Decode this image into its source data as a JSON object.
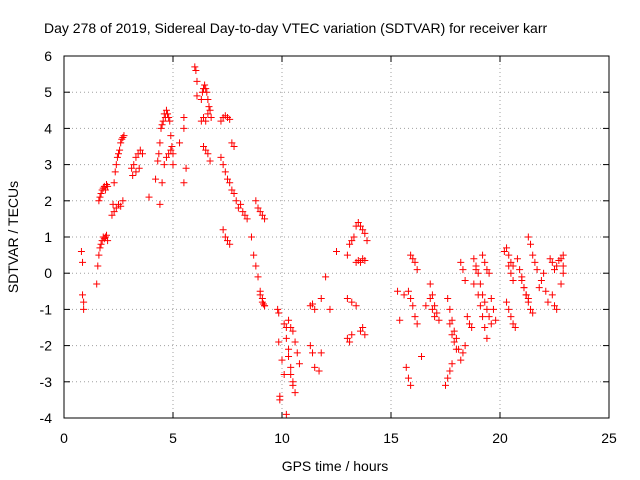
{
  "chart_data": {
    "type": "scatter",
    "title": "Day 278 of 2019, Sidereal Day-to-day VTEC variation (SDTVAR) for receiver karr",
    "xlabel": "GPS time / hours",
    "ylabel": "SDTVAR / TECUs",
    "xlim": [
      0,
      25
    ],
    "ylim": [
      -4,
      6
    ],
    "xticks": [
      0,
      5,
      10,
      15,
      20,
      25
    ],
    "yticks": [
      -4,
      -3,
      -2,
      -1,
      0,
      1,
      2,
      3,
      4,
      5,
      6
    ],
    "grid": true,
    "marker": "+",
    "color": "#ff0000",
    "series": [
      {
        "name": "SDTVAR",
        "x": [
          0.8,
          0.85,
          0.85,
          0.9,
          0.9,
          1.5,
          1.55,
          1.6,
          1.65,
          1.7,
          1.75,
          1.8,
          1.85,
          1.9,
          1.95,
          2.0,
          1.6,
          1.65,
          1.7,
          1.75,
          1.8,
          1.85,
          1.9,
          1.95,
          2.0,
          2.2,
          2.25,
          2.3,
          2.35,
          2.4,
          2.45,
          2.5,
          2.55,
          2.6,
          2.65,
          2.7,
          2.75,
          2.3,
          2.4,
          2.5,
          2.6,
          2.7,
          3.1,
          3.2,
          3.3,
          3.4,
          3.5,
          3.6,
          3.15,
          3.3,
          3.45,
          3.9,
          4.2,
          4.3,
          4.35,
          4.4,
          4.45,
          4.5,
          4.55,
          4.6,
          4.65,
          4.7,
          4.75,
          4.8,
          4.85,
          4.9,
          4.95,
          5.0,
          4.6,
          4.7,
          4.8,
          4.9,
          5.0,
          4.4,
          4.5,
          5.3,
          5.5,
          5.5,
          5.6,
          5.5,
          6.0,
          6.05,
          6.1,
          6.1,
          6.3,
          6.35,
          6.4,
          6.45,
          6.5,
          6.55,
          6.6,
          6.65,
          6.7,
          6.75,
          6.4,
          6.5,
          6.6,
          6.7,
          6.3,
          6.4,
          6.5,
          6.6,
          7.2,
          7.3,
          7.4,
          7.5,
          7.6,
          7.2,
          7.3,
          7.4,
          7.5,
          7.6,
          7.7,
          7.8,
          7.7,
          7.8,
          7.3,
          7.4,
          7.5,
          7.6,
          7.9,
          8.0,
          8.1,
          8.2,
          8.3,
          8.4,
          8.6,
          8.7,
          8.8,
          8.9,
          9.0,
          9.1,
          9.2,
          8.8,
          8.9,
          9.0,
          9.1,
          9.2,
          9.0,
          9.1,
          9.15,
          9.2,
          9.8,
          9.85,
          9.9,
          9.85,
          9.9,
          10.1,
          10.2,
          10.3,
          10.4,
          10.5,
          10.6,
          10.2,
          10.3,
          10.4,
          10.5,
          10.0,
          10.1,
          10.2,
          10.3,
          10.4,
          10.5,
          10.6,
          10.7,
          10.8,
          11.3,
          11.4,
          11.5,
          11.3,
          11.4,
          11.5,
          11.7,
          11.8,
          11.8,
          12.2,
          12.0,
          12.5,
          13.0,
          13.1,
          13.2,
          13.3,
          13.4,
          13.5,
          13.6,
          13.7,
          13.8,
          13.9,
          13.4,
          13.5,
          13.6,
          13.7,
          13.8,
          13.0,
          13.2,
          13.4,
          13.0,
          13.1,
          13.2,
          13.6,
          13.7,
          13.8,
          15.3,
          15.4,
          15.6,
          15.9,
          16.0,
          16.1,
          16.2,
          15.8,
          15.9,
          16.0,
          16.1,
          15.7,
          15.8,
          15.9,
          16.2,
          16.4,
          16.6,
          16.8,
          16.9,
          17.0,
          17.1,
          17.2,
          16.8,
          16.9,
          17.0,
          17.5,
          17.6,
          17.7,
          17.8,
          17.6,
          17.7,
          17.8,
          17.9,
          18.0,
          18.1,
          18.2,
          18.3,
          18.4,
          17.7,
          17.8,
          17.9,
          18.0,
          18.2,
          18.3,
          18.4,
          18.5,
          18.6,
          18.7,
          18.8,
          18.9,
          19.0,
          19.1,
          19.2,
          19.3,
          19.4,
          18.8,
          18.9,
          19.0,
          19.1,
          19.2,
          19.3,
          19.4,
          19.5,
          19.6,
          19.2,
          19.3,
          19.4,
          19.5,
          19.6,
          19.7,
          19.8,
          20.2,
          20.3,
          20.4,
          20.5,
          20.6,
          20.3,
          20.4,
          20.5,
          20.6,
          20.7,
          20.4,
          20.5,
          20.6,
          21.0,
          21.1,
          21.2,
          21.3,
          21.4,
          21.5,
          20.8,
          20.9,
          21.0,
          21.1,
          21.2,
          21.3,
          21.3,
          21.4,
          21.5,
          21.6,
          21.7,
          21.8,
          21.9,
          22.0,
          22.1,
          22.2,
          22.3,
          22.4,
          22.5,
          22.6,
          22.7,
          22.8,
          22.9,
          22.4,
          22.5,
          22.6,
          22.9,
          22.9,
          22.8
        ],
        "y": [
          0.6,
          -0.6,
          0.3,
          -0.8,
          -1.0,
          -0.3,
          0.2,
          0.5,
          0.7,
          0.8,
          0.9,
          1.0,
          0.95,
          1.0,
          1.05,
          0.9,
          2.0,
          2.1,
          2.2,
          2.3,
          2.35,
          2.4,
          2.3,
          2.45,
          2.4,
          1.6,
          1.9,
          2.5,
          2.8,
          3.0,
          3.2,
          3.3,
          3.4,
          3.6,
          3.7,
          3.75,
          3.8,
          1.7,
          1.8,
          1.9,
          1.85,
          2.0,
          2.9,
          3.0,
          3.2,
          3.3,
          3.4,
          3.3,
          2.7,
          2.8,
          2.9,
          2.1,
          2.6,
          3.1,
          3.3,
          3.6,
          4.0,
          4.1,
          4.2,
          4.4,
          4.3,
          4.5,
          4.4,
          4.3,
          4.2,
          3.8,
          3.5,
          3.3,
          3.0,
          3.2,
          3.3,
          3.4,
          3.0,
          1.9,
          2.5,
          3.6,
          4.0,
          2.5,
          2.9,
          4.3,
          5.7,
          5.6,
          5.3,
          4.9,
          4.8,
          5.0,
          5.1,
          5.2,
          5.1,
          5.0,
          4.8,
          4.6,
          4.5,
          4.3,
          3.5,
          3.4,
          3.3,
          3.1,
          4.2,
          4.3,
          4.2,
          4.4,
          4.2,
          4.3,
          4.35,
          4.3,
          4.25,
          3.2,
          3.0,
          2.8,
          2.6,
          2.5,
          2.3,
          2.2,
          3.6,
          3.5,
          1.2,
          1.0,
          0.9,
          0.8,
          2.0,
          1.8,
          1.9,
          1.7,
          1.6,
          1.5,
          1.0,
          0.5,
          0.2,
          -0.1,
          -0.5,
          -0.7,
          -0.9,
          2.0,
          1.8,
          1.7,
          1.6,
          1.5,
          -0.6,
          -0.8,
          -0.85,
          -0.9,
          -1.0,
          -1.9,
          -3.4,
          -1.1,
          -3.5,
          -1.4,
          -1.8,
          -2.3,
          -2.8,
          -3.1,
          -3.3,
          -1.5,
          -2.1,
          -2.6,
          -3.0,
          -2.4,
          -2.8,
          -3.9,
          -1.3,
          -1.5,
          -1.6,
          -1.9,
          -2.2,
          -2.5,
          -0.9,
          -0.85,
          -1.0,
          -2.0,
          -2.2,
          -2.6,
          -2.7,
          -2.2,
          -0.7,
          -1.0,
          -0.1,
          0.6,
          0.5,
          0.8,
          0.9,
          1.0,
          1.3,
          1.4,
          1.3,
          1.2,
          1.1,
          0.9,
          0.3,
          0.35,
          0.3,
          0.4,
          0.35,
          -0.7,
          -0.8,
          -0.9,
          -1.8,
          -1.9,
          -1.7,
          -1.6,
          -1.5,
          -1.7,
          -0.5,
          -1.3,
          -0.6,
          0.5,
          0.4,
          0.3,
          0.1,
          -0.5,
          -0.7,
          -0.9,
          -1.2,
          -2.6,
          -2.9,
          -3.1,
          -1.4,
          -2.3,
          -0.9,
          -0.3,
          -0.6,
          -0.9,
          -1.1,
          -1.3,
          -0.7,
          -1.0,
          -1.2,
          -3.1,
          -2.9,
          -2.7,
          -2.5,
          -0.7,
          -1.0,
          -1.3,
          -1.6,
          -1.8,
          -2.1,
          -2.4,
          -2.2,
          -2.0,
          -1.4,
          -1.7,
          -1.9,
          -2.1,
          0.3,
          0.1,
          -0.2,
          -1.2,
          -1.4,
          -1.5,
          -0.3,
          0.1,
          -0.6,
          -0.9,
          -1.2,
          -1.5,
          -1.8,
          0.4,
          0.2,
          0.0,
          -0.3,
          -0.6,
          -0.8,
          -1.0,
          -1.2,
          -1.4,
          0.5,
          0.3,
          0.1,
          0.0,
          -0.7,
          -1.0,
          -1.3,
          0.6,
          0.7,
          0.5,
          0.3,
          0.2,
          -0.8,
          -1.0,
          -1.2,
          -1.4,
          -1.5,
          0.2,
          0.0,
          -0.2,
          -0.1,
          -0.4,
          -0.6,
          -0.8,
          -1.0,
          -1.1,
          0.4,
          0.1,
          -0.2,
          -0.4,
          -0.6,
          -0.7,
          1.0,
          0.8,
          0.5,
          0.3,
          0.1,
          -0.4,
          -0.2,
          0.0,
          -0.5,
          -0.8,
          0.4,
          0.3,
          0.1,
          0.2,
          0.35,
          0.4,
          0.5,
          -0.6,
          -0.9,
          -1.0,
          0.2,
          0.0,
          -0.3
        ]
      }
    ]
  }
}
